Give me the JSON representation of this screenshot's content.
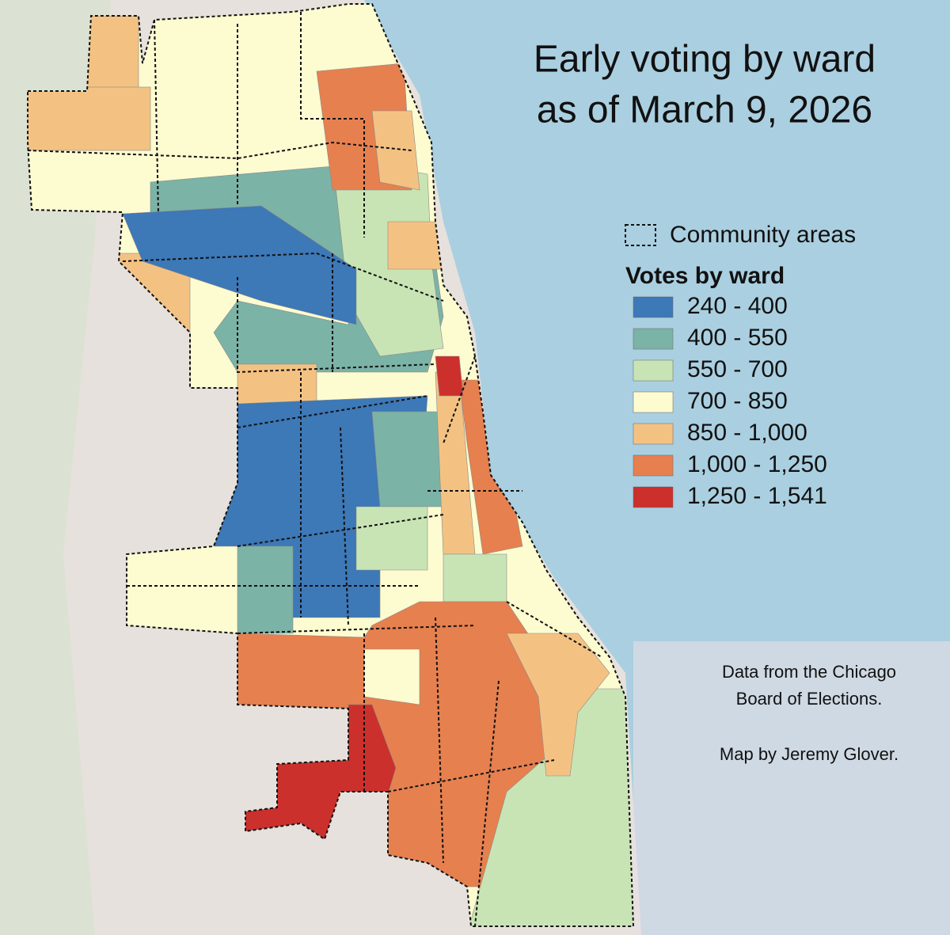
{
  "title": [
    "Early voting by ward",
    "as of March 9, 2026"
  ],
  "legend": {
    "community_areas": "Community areas",
    "title": "Votes by ward",
    "bins": [
      {
        "label": "240 - 400",
        "color": "#3d78b7"
      },
      {
        "label": "400 - 550",
        "color": "#7bb3a6"
      },
      {
        "label": "550 - 700",
        "color": "#c9e4b4"
      },
      {
        "label": "700 - 850",
        "color": "#fdfbd0"
      },
      {
        "label": "850 - 1,000",
        "color": "#f3c283"
      },
      {
        "label": "1,000 - 1,250",
        "color": "#e6804f"
      },
      {
        "label": "1,250 - 1,541",
        "color": "#cc302c"
      }
    ]
  },
  "credits": [
    "Data from the Chicago",
    "Board of Elections.",
    "Map by Jeremy Glover."
  ]
}
